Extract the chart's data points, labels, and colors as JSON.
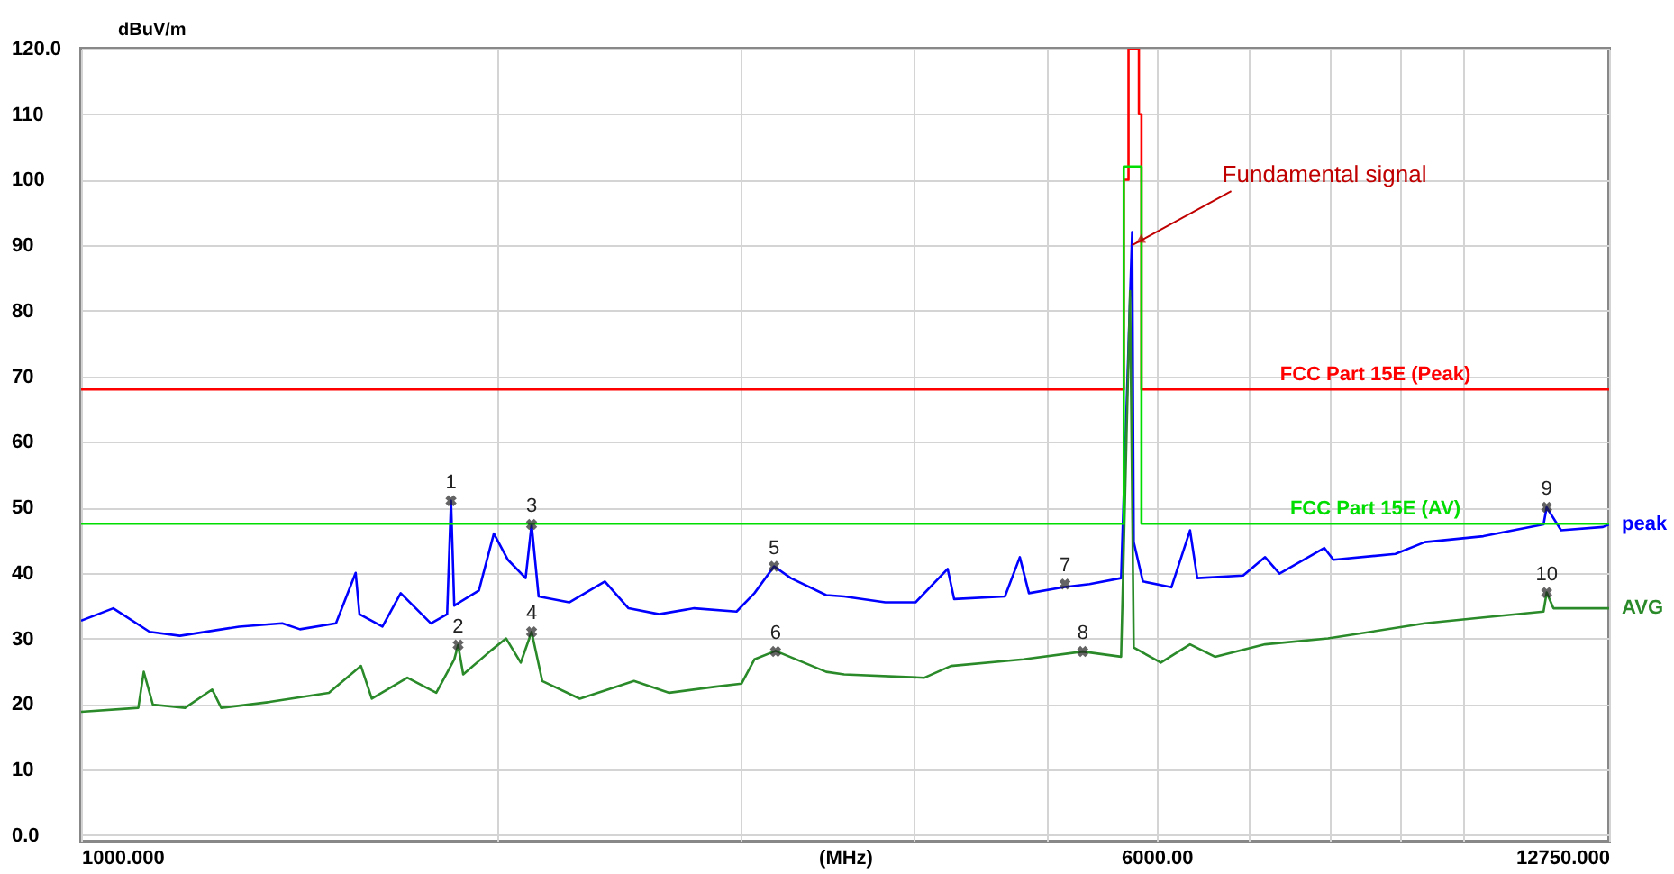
{
  "chart_data": {
    "type": "line",
    "xlabel": "(MHz)",
    "ylabel": "dBuV/m",
    "log": "x",
    "grid": true,
    "legend": false,
    "xlim": [
      1000,
      12750
    ],
    "xticks": [
      {
        "value": 1000,
        "label": "1000.000"
      },
      {
        "value": 2000,
        "label": null
      },
      {
        "value": 3000,
        "label": null
      },
      {
        "value": 4000,
        "label": null
      },
      {
        "value": 5000,
        "label": null
      },
      {
        "value": 6000,
        "label": "6000.00"
      },
      {
        "value": 7000,
        "label": null
      },
      {
        "value": 8000,
        "label": null
      },
      {
        "value": 9000,
        "label": null
      },
      {
        "value": 10000,
        "label": null
      },
      {
        "value": 12750,
        "label": "12750.000"
      }
    ],
    "ylim": [
      -1,
      120
    ],
    "yticks": [
      {
        "value": 0,
        "label": "0.0"
      },
      10,
      20,
      30,
      40,
      50,
      60,
      70,
      80,
      90,
      100,
      110,
      {
        "value": 120,
        "label": "120.0"
      }
    ],
    "series": [
      {
        "name": "peak",
        "color": "#0000ff",
        "x": [
          1000,
          1055,
          1121,
          1179,
          1301,
          1398,
          1440,
          1529,
          1580,
          1590,
          1652,
          1703,
          1791,
          1840,
          1852,
          1862,
          1940,
          1989,
          2036,
          2097,
          2118,
          2143,
          2255,
          2393,
          2489,
          2619,
          2777,
          2980,
          3070,
          3172,
          3262,
          3460,
          3565,
          3818,
          4015,
          4236,
          4282,
          4660,
          4777,
          4850,
          5135,
          5366,
          5655,
          5760,
          5775,
          5864,
          6149,
          6343,
          6420,
          6930,
          7188,
          7362,
          7934,
          8054,
          8930,
          9380,
          10340,
          11430,
          11490,
          11770,
          12620,
          12750
        ],
        "values": [
          32.7,
          34.6,
          31,
          30.4,
          31.8,
          32.3,
          31.4,
          32.3,
          40,
          33.7,
          31.8,
          36.9,
          32.3,
          33.7,
          51,
          35,
          37.3,
          46,
          42,
          39.2,
          47.4,
          36.4,
          35.5,
          38.7,
          34.6,
          33.7,
          34.6,
          34.1,
          36.9,
          41,
          39.2,
          36.6,
          36.4,
          35.5,
          35.5,
          40.6,
          36,
          36.4,
          42.4,
          36.9,
          37.8,
          38.3,
          39.2,
          92,
          44.7,
          38.7,
          37.8,
          46.5,
          39.2,
          39.6,
          42.4,
          39.9,
          43.8,
          42,
          42.9,
          44.7,
          45.6,
          47.4,
          50,
          46.5,
          47,
          47.4
        ]
      },
      {
        "name": "AVG",
        "color": "#2a8a2a",
        "x": [
          1000,
          1100,
          1110,
          1127,
          1189,
          1244,
          1263,
          1369,
          1511,
          1594,
          1623,
          1722,
          1807,
          1862,
          1874,
          1890,
          1978,
          2030,
          2080,
          2118,
          2156,
          2295,
          2512,
          2664,
          2869,
          3005,
          3070,
          3180,
          3460,
          3565,
          4075,
          4259,
          4806,
          5305,
          5655,
          5740,
          5775,
          6042,
          6343,
          6612,
          7188,
          7982,
          9380,
          10340,
          11430,
          11490,
          11620,
          12620,
          12750
        ],
        "values": [
          18.8,
          19.4,
          24.9,
          19.9,
          19.4,
          22.2,
          19.4,
          20.3,
          21.7,
          25.8,
          20.8,
          24,
          21.7,
          26.8,
          29,
          24.5,
          28.1,
          30,
          26.3,
          31,
          23.5,
          20.8,
          23.5,
          21.7,
          22.6,
          23.1,
          26.8,
          28.1,
          24.9,
          24.5,
          24,
          25.8,
          26.8,
          28,
          27.2,
          83,
          28.6,
          26.3,
          29.1,
          27.2,
          29.1,
          30,
          32.3,
          33.2,
          34.1,
          37,
          34.6,
          34.6,
          34.6
        ]
      },
      {
        "name": "FCC Part 15E  (Peak)",
        "color": "#ff0000",
        "x": [
          1000,
          5680,
          5680,
          5725,
          5725,
          5825,
          5825,
          5850,
          5850,
          12750
        ],
        "values": [
          68,
          68,
          100,
          100,
          120,
          120,
          110,
          110,
          68,
          68
        ]
      },
      {
        "name": "FCC Part 15E  (AV)",
        "color": "#00dd00",
        "x": [
          1000,
          5680,
          5680,
          5850,
          5850,
          12750
        ],
        "values": [
          47.5,
          47.5,
          102,
          102,
          47.5,
          47.5
        ]
      }
    ],
    "annotations": [
      {
        "text": "Fundamental signal",
        "x": 5760,
        "y": 90
      },
      {
        "text": "1",
        "x": 1852,
        "y": 51
      },
      {
        "text": "2",
        "x": 1874,
        "y": 29
      },
      {
        "text": "3",
        "x": 2118,
        "y": 47.4
      },
      {
        "text": "4",
        "x": 2118,
        "y": 31
      },
      {
        "text": "5",
        "x": 3172,
        "y": 41
      },
      {
        "text": "6",
        "x": 3180,
        "y": 28
      },
      {
        "text": "7",
        "x": 5150,
        "y": 38.3
      },
      {
        "text": "8",
        "x": 5305,
        "y": 28
      },
      {
        "text": "9",
        "x": 11490,
        "y": 50
      },
      {
        "text": "10",
        "x": 11490,
        "y": 37
      }
    ]
  }
}
